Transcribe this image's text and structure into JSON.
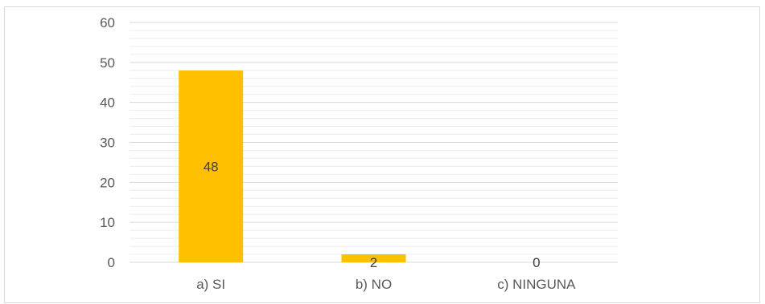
{
  "chart_data": {
    "type": "bar",
    "categories": [
      "a) SI",
      "b) NO",
      "c) NINGUNA"
    ],
    "values": [
      48,
      2,
      0
    ],
    "data_labels": [
      "48",
      "2",
      "0"
    ],
    "ylim": [
      0,
      60
    ],
    "y_ticks": [
      0,
      10,
      20,
      30,
      40,
      50,
      60
    ],
    "y_tick_labels": [
      "0",
      "10",
      "20",
      "30",
      "40",
      "50",
      "60"
    ],
    "grid": true,
    "minor_grid": true,
    "bar_color": "#FFC000",
    "grid_color": "#d9d9d9",
    "legend": "none"
  }
}
